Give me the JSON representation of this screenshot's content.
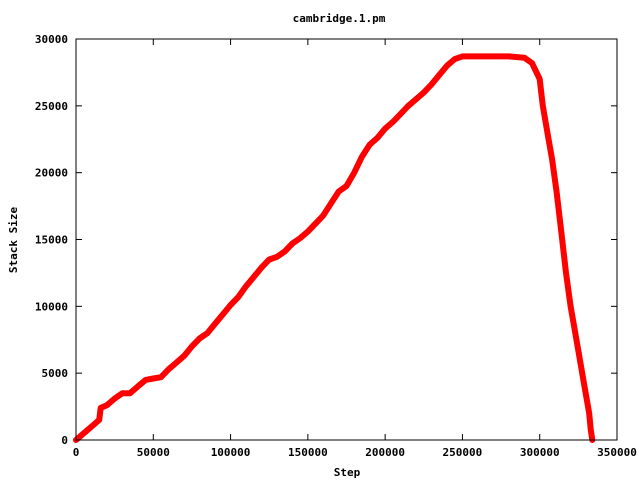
{
  "chart_data": {
    "type": "line",
    "title": "cambridge.1.pm",
    "xlabel": "Step",
    "ylabel": "Stack Size",
    "xlim": [
      0,
      350000
    ],
    "ylim": [
      0,
      30000
    ],
    "x_ticks": [
      0,
      50000,
      100000,
      150000,
      200000,
      250000,
      300000,
      350000
    ],
    "x_tick_labels": [
      "0",
      "50000",
      "100000",
      "150000",
      "200000",
      "250000",
      "300000",
      "350000"
    ],
    "y_ticks": [
      0,
      5000,
      10000,
      15000,
      20000,
      25000,
      30000
    ],
    "y_tick_labels": [
      "0",
      "5000",
      "10000",
      "15000",
      "20000",
      "25000",
      "30000"
    ],
    "grid": false,
    "legend": "none",
    "series": [
      {
        "color": "#ff0000",
        "x": [
          0,
          5000,
          10000,
          15000,
          16000,
          20000,
          25000,
          30000,
          35000,
          40000,
          45000,
          50000,
          55000,
          60000,
          65000,
          70000,
          75000,
          80000,
          85000,
          90000,
          95000,
          100000,
          105000,
          110000,
          115000,
          120000,
          125000,
          130000,
          135000,
          140000,
          145000,
          150000,
          155000,
          160000,
          165000,
          170000,
          175000,
          180000,
          185000,
          190000,
          195000,
          200000,
          205000,
          210000,
          215000,
          220000,
          225000,
          230000,
          235000,
          240000,
          245000,
          250000,
          255000,
          260000,
          270000,
          280000,
          290000,
          295000,
          300000,
          302000,
          305000,
          308000,
          311000,
          314000,
          317000,
          320000,
          323000,
          326000,
          329000,
          332000,
          333000,
          334000
        ],
        "y": [
          0,
          500,
          1000,
          1500,
          2400,
          2600,
          3100,
          3500,
          3500,
          4000,
          4500,
          4600,
          4700,
          5300,
          5800,
          6300,
          7000,
          7600,
          8000,
          8700,
          9400,
          10100,
          10700,
          11500,
          12200,
          12900,
          13500,
          13700,
          14100,
          14700,
          15100,
          15600,
          16200,
          16800,
          17700,
          18600,
          19000,
          20000,
          21200,
          22100,
          22600,
          23300,
          23800,
          24400,
          25000,
          25500,
          26000,
          26600,
          27300,
          28000,
          28500,
          28700,
          28700,
          28700,
          28700,
          28700,
          28600,
          28200,
          27000,
          25000,
          23000,
          21000,
          18500,
          15500,
          12500,
          10000,
          8000,
          6000,
          4000,
          2000,
          800,
          0
        ]
      }
    ]
  }
}
